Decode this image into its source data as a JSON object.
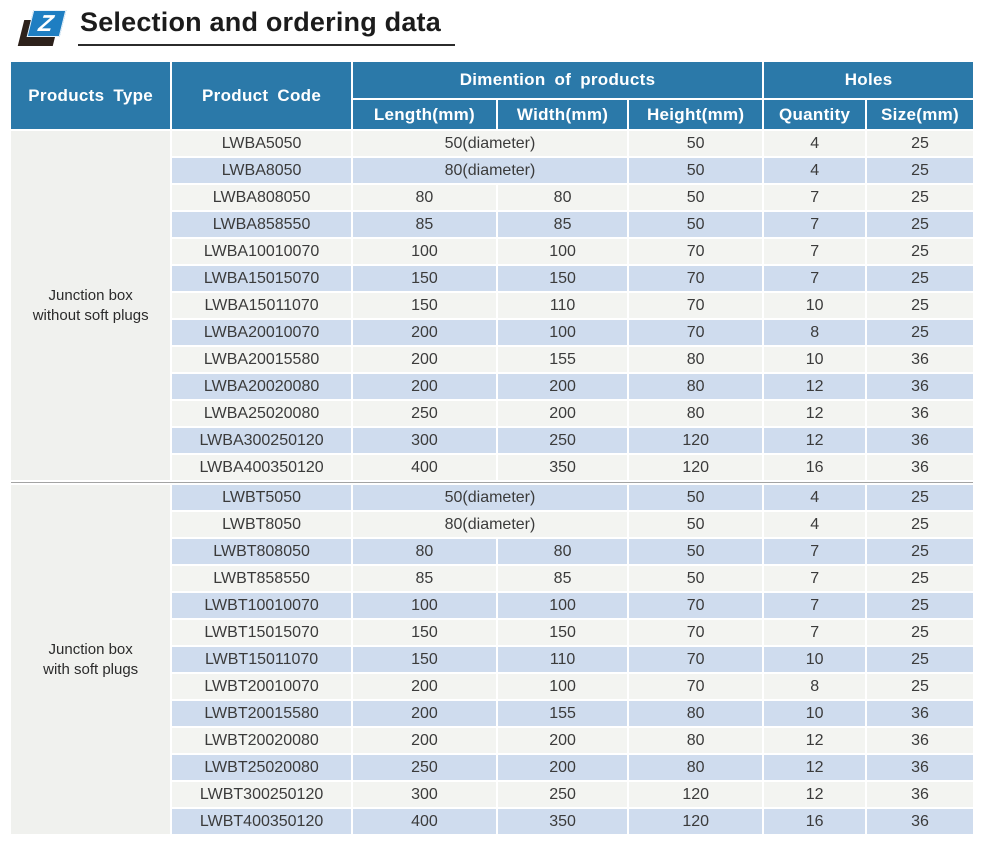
{
  "header": {
    "logo_letter": "Z",
    "title": "Selection and ordering data"
  },
  "colors": {
    "header_blue": "#2b79a9",
    "row_light": "#f3f4f1",
    "row_blue": "#cfdcee",
    "type_col_bg": "#f0f1ee",
    "logo_blue": "#1e7ec2",
    "logo_dark": "#2d211b"
  },
  "table": {
    "column_headers": {
      "products_type": "Products Type",
      "product_code": "Product Code",
      "dimension_group": "Dimention of products",
      "holes_group": "Holes",
      "length": "Length(mm)",
      "width": "Width(mm)",
      "height": "Height(mm)",
      "quantity": "Quantity",
      "size": "Size(mm)"
    },
    "groups": [
      {
        "type_label": {
          "line1": "Junction box",
          "line2": "without soft plugs"
        },
        "rows": [
          {
            "code": "LWBA5050",
            "length": "50(diameter)",
            "width": "",
            "height": "50",
            "quantity": "4",
            "size": "25",
            "merged": true
          },
          {
            "code": "LWBA8050",
            "length": "80(diameter)",
            "width": "",
            "height": "50",
            "quantity": "4",
            "size": "25",
            "merged": true
          },
          {
            "code": "LWBA808050",
            "length": "80",
            "width": "80",
            "height": "50",
            "quantity": "7",
            "size": "25"
          },
          {
            "code": "LWBA858550",
            "length": "85",
            "width": "85",
            "height": "50",
            "quantity": "7",
            "size": "25"
          },
          {
            "code": "LWBA10010070",
            "length": "100",
            "width": "100",
            "height": "70",
            "quantity": "7",
            "size": "25"
          },
          {
            "code": "LWBA15015070",
            "length": "150",
            "width": "150",
            "height": "70",
            "quantity": "7",
            "size": "25"
          },
          {
            "code": "LWBA15011070",
            "length": "150",
            "width": "110",
            "height": "70",
            "quantity": "10",
            "size": "25"
          },
          {
            "code": "LWBA20010070",
            "length": "200",
            "width": "100",
            "height": "70",
            "quantity": "8",
            "size": "25"
          },
          {
            "code": "LWBA20015580",
            "length": "200",
            "width": "155",
            "height": "80",
            "quantity": "10",
            "size": "36"
          },
          {
            "code": "LWBA20020080",
            "length": "200",
            "width": "200",
            "height": "80",
            "quantity": "12",
            "size": "36"
          },
          {
            "code": "LWBA25020080",
            "length": "250",
            "width": "200",
            "height": "80",
            "quantity": "12",
            "size": "36"
          },
          {
            "code": "LWBA300250120",
            "length": "300",
            "width": "250",
            "height": "120",
            "quantity": "12",
            "size": "36"
          },
          {
            "code": "LWBA400350120",
            "length": "400",
            "width": "350",
            "height": "120",
            "quantity": "16",
            "size": "36"
          }
        ]
      },
      {
        "type_label": {
          "line1": "Junction box",
          "line2": "with soft plugs"
        },
        "rows": [
          {
            "code": "LWBT5050",
            "length": "50(diameter)",
            "width": "",
            "height": "50",
            "quantity": "4",
            "size": "25",
            "merged": true
          },
          {
            "code": "LWBT8050",
            "length": "80(diameter)",
            "width": "",
            "height": "50",
            "quantity": "4",
            "size": "25",
            "merged": true
          },
          {
            "code": "LWBT808050",
            "length": "80",
            "width": "80",
            "height": "50",
            "quantity": "7",
            "size": "25"
          },
          {
            "code": "LWBT858550",
            "length": "85",
            "width": "85",
            "height": "50",
            "quantity": "7",
            "size": "25"
          },
          {
            "code": "LWBT10010070",
            "length": "100",
            "width": "100",
            "height": "70",
            "quantity": "7",
            "size": "25"
          },
          {
            "code": "LWBT15015070",
            "length": "150",
            "width": "150",
            "height": "70",
            "quantity": "7",
            "size": "25"
          },
          {
            "code": "LWBT15011070",
            "length": "150",
            "width": "110",
            "height": "70",
            "quantity": "10",
            "size": "25"
          },
          {
            "code": "LWBT20010070",
            "length": "200",
            "width": "100",
            "height": "70",
            "quantity": "8",
            "size": "25"
          },
          {
            "code": "LWBT20015580",
            "length": "200",
            "width": "155",
            "height": "80",
            "quantity": "10",
            "size": "36"
          },
          {
            "code": "LWBT20020080",
            "length": "200",
            "width": "200",
            "height": "80",
            "quantity": "12",
            "size": "36"
          },
          {
            "code": "LWBT25020080",
            "length": "250",
            "width": "200",
            "height": "80",
            "quantity": "12",
            "size": "36"
          },
          {
            "code": "LWBT300250120",
            "length": "300",
            "width": "250",
            "height": "120",
            "quantity": "12",
            "size": "36"
          },
          {
            "code": "LWBT400350120",
            "length": "400",
            "width": "350",
            "height": "120",
            "quantity": "16",
            "size": "36"
          }
        ]
      }
    ]
  }
}
